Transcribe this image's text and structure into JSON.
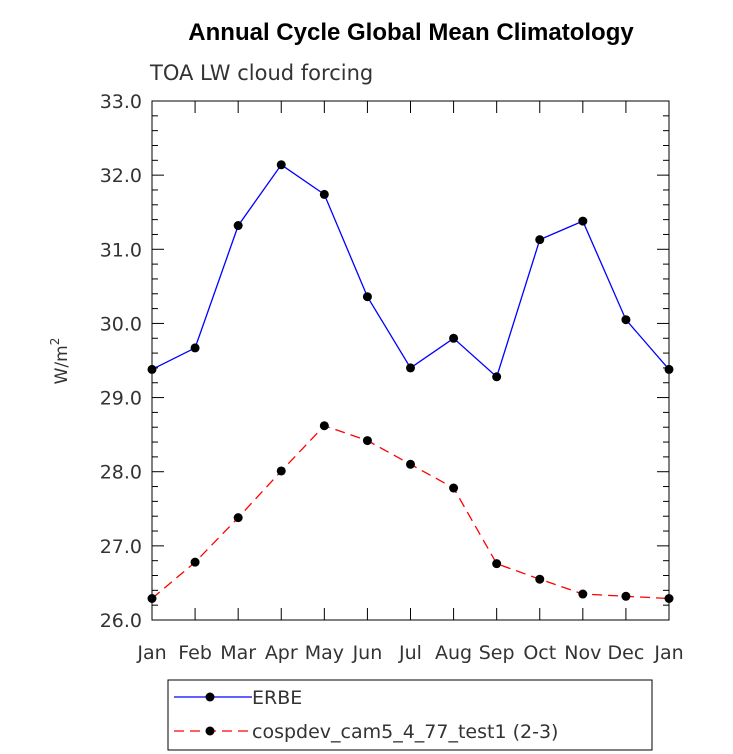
{
  "chart_data": {
    "type": "line",
    "title": "Annual Cycle Global Mean Climatology",
    "subtitle": "TOA LW cloud forcing",
    "ylabel": "W/m",
    "ylabel_superscript": "2",
    "xlabel": "",
    "categories": [
      "Jan",
      "Feb",
      "Mar",
      "Apr",
      "May",
      "Jun",
      "Jul",
      "Aug",
      "Sep",
      "Oct",
      "Nov",
      "Dec",
      "Jan"
    ],
    "ylim": [
      26.0,
      33.0
    ],
    "yticks": [
      "26.0",
      "27.0",
      "28.0",
      "29.0",
      "30.0",
      "31.0",
      "32.0",
      "33.0"
    ],
    "grid": false,
    "legend_position": "bottom",
    "series": [
      {
        "name": "ERBE",
        "color": "#0000ff",
        "dash": "solid",
        "values": [
          29.38,
          29.67,
          31.32,
          32.14,
          31.74,
          30.36,
          29.4,
          29.8,
          29.28,
          31.13,
          31.38,
          30.05,
          29.38
        ]
      },
      {
        "name": "cospdev_cam5_4_77_test1 (2-3)",
        "color": "#ff0000",
        "dash": "dashed",
        "values": [
          26.29,
          26.78,
          27.38,
          28.01,
          28.62,
          28.42,
          28.1,
          27.78,
          26.76,
          26.55,
          26.35,
          26.32,
          26.29
        ]
      }
    ]
  }
}
